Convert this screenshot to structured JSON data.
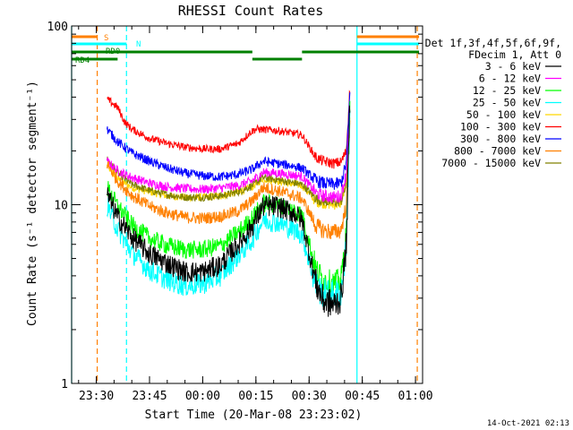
{
  "chart_data": {
    "type": "line",
    "title": "RHESSI Count Rates",
    "xlabel": "Start Time (20-Mar-08 23:23:02)",
    "ylabel": "Count Rate (s⁻¹ detector segment⁻¹)",
    "y_scale": "log",
    "ylim": [
      1,
      100
    ],
    "x_time_range": [
      "23:23:02",
      "01:02:00"
    ],
    "x_ticks": [
      "23:30",
      "23:45",
      "00:00",
      "00:15",
      "00:30",
      "00:45",
      "01:00"
    ],
    "y_ticks": [
      "1",
      "10",
      "100"
    ],
    "legend_header": [
      "Det 1f,3f,4f,5f,6f,9f,",
      "FDecim 1, Att 0"
    ],
    "legend_placement": "right",
    "grid": false,
    "timestamp": "14-Oct-2021 02:13",
    "flag_labels": {
      "s": "S",
      "n": "N",
      "rd0": "RD0",
      "rd4": "RD4"
    },
    "flag_bars": [
      {
        "label": "S",
        "color": "#ff8000",
        "from": "23:23:02",
        "to": "23:30:15",
        "level": "top"
      },
      {
        "label": "S",
        "color": "#ff8000",
        "from": "00:43:30",
        "to": "01:01:00",
        "level": "top"
      },
      {
        "label": "N",
        "color": "#00ffff",
        "from": "23:23:02",
        "to": "23:38:30",
        "level": "middle"
      },
      {
        "label": "N",
        "color": "#00ffff",
        "from": "00:43:30",
        "to": "01:01:00",
        "level": "middle"
      },
      {
        "label": "RD0",
        "color": "#008000",
        "from": "23:23:02",
        "to": "00:14:00",
        "level": "upper"
      },
      {
        "label": "RD0",
        "color": "#008000",
        "from": "00:28:00",
        "to": "01:01:00",
        "level": "upper"
      },
      {
        "label": "RD4",
        "color": "#008000",
        "from": "23:23:02",
        "to": "23:36:00",
        "level": "lower"
      },
      {
        "label": "RD4",
        "color": "#008000",
        "from": "00:14:00",
        "to": "00:28:00",
        "level": "lower"
      }
    ],
    "vlines": [
      {
        "time": "23:23:02",
        "color": "#00ffff",
        "style": "solid"
      },
      {
        "time": "23:30:15",
        "color": "#ff8000",
        "style": "dashed"
      },
      {
        "time": "23:38:30",
        "color": "#00ffff",
        "style": "dashed"
      },
      {
        "time": "00:43:30",
        "color": "#00ffff",
        "style": "solid"
      },
      {
        "time": "01:00:30",
        "color": "#ff8000",
        "style": "dashed"
      }
    ],
    "data_window": [
      "23:33:00",
      "00:41:30"
    ],
    "series": [
      {
        "name": "3 - 6 keV",
        "color": "#000000",
        "times": [
          "23:33:00",
          "23:36:00",
          "23:40:00",
          "23:45:00",
          "23:50:00",
          "23:55:00",
          "00:00:00",
          "00:05:00",
          "00:10:00",
          "00:14:00",
          "00:17:00",
          "00:21:00",
          "00:26:00",
          "00:28:00",
          "00:32:00",
          "00:34:00",
          "00:37:00",
          "00:39:00",
          "00:40:30",
          "00:41:30"
        ],
        "values": [
          11.5,
          8.5,
          6.6,
          5.3,
          4.7,
          4.2,
          4.2,
          4.6,
          6.0,
          7.6,
          9.8,
          9.8,
          8.9,
          8.2,
          3.6,
          2.9,
          2.75,
          3.0,
          6.0,
          38
        ]
      },
      {
        "name": "6 - 12 keV",
        "color": "#ff00ff",
        "times": [
          "23:33:00",
          "23:36:00",
          "23:40:00",
          "23:45:00",
          "23:50:00",
          "23:55:00",
          "00:00:00",
          "00:05:00",
          "00:10:00",
          "00:14:00",
          "00:17:00",
          "00:21:00",
          "00:26:00",
          "00:28:00",
          "00:32:00",
          "00:34:00",
          "00:37:00",
          "00:39:00",
          "00:40:30",
          "00:41:30"
        ],
        "values": [
          17.5,
          15.5,
          14.2,
          13.2,
          12.6,
          12.3,
          12.2,
          12.4,
          12.8,
          13.6,
          15.2,
          15.0,
          14.6,
          14.4,
          11.6,
          11.2,
          11.0,
          11.2,
          15,
          34
        ]
      },
      {
        "name": "12 - 25 keV",
        "color": "#00ff00",
        "times": [
          "23:33:00",
          "23:36:00",
          "23:40:00",
          "23:45:00",
          "23:50:00",
          "23:55:00",
          "00:00:00",
          "00:05:00",
          "00:10:00",
          "00:14:00",
          "00:17:00",
          "00:21:00",
          "00:26:00",
          "00:28:00",
          "00:32:00",
          "00:34:00",
          "00:37:00",
          "00:39:00",
          "00:40:30",
          "00:41:30"
        ],
        "values": [
          12.5,
          9.8,
          7.7,
          6.5,
          5.9,
          5.6,
          5.6,
          5.9,
          7.0,
          8.4,
          10.2,
          10.0,
          9.2,
          8.8,
          4.3,
          3.8,
          3.6,
          3.8,
          7.0,
          33
        ]
      },
      {
        "name": "25 - 50 keV",
        "color": "#00ffff",
        "times": [
          "23:33:00",
          "23:36:00",
          "23:40:00",
          "23:45:00",
          "23:50:00",
          "23:55:00",
          "00:00:00",
          "00:05:00",
          "00:10:00",
          "00:14:00",
          "00:17:00",
          "00:21:00",
          "00:26:00",
          "00:28:00",
          "00:32:00",
          "00:34:00",
          "00:37:00",
          "00:39:00",
          "00:40:30",
          "00:41:30"
        ],
        "values": [
          10.0,
          7.3,
          5.4,
          4.3,
          3.8,
          3.5,
          3.6,
          4.0,
          5.2,
          6.4,
          8.2,
          8.0,
          7.2,
          6.8,
          3.5,
          3.2,
          3.15,
          3.2,
          6.0,
          35
        ]
      },
      {
        "name": "50 - 100 keV",
        "color": "#ffd700",
        "times": [
          "23:33:00",
          "23:36:00",
          "23:40:00",
          "23:45:00",
          "23:50:00",
          "23:55:00",
          "00:00:00",
          "00:05:00",
          "00:10:00",
          "00:14:00",
          "00:17:00",
          "00:21:00",
          "00:26:00",
          "00:28:00",
          "00:32:00",
          "00:34:00",
          "00:37:00",
          "00:39:00",
          "00:40:30",
          "00:41:30"
        ],
        "values": [
          16.5,
          14.0,
          12.5,
          11.8,
          11.2,
          11.0,
          11.0,
          11.2,
          11.8,
          12.6,
          14.0,
          13.6,
          13.0,
          12.8,
          10.4,
          10.2,
          10.0,
          10.2,
          13,
          32
        ]
      },
      {
        "name": "100 - 300 keV",
        "color": "#ff0000",
        "times": [
          "23:33:00",
          "23:36:00",
          "23:38:00",
          "23:40:00",
          "23:45:00",
          "23:50:00",
          "23:55:00",
          "00:00:00",
          "00:05:00",
          "00:10:00",
          "00:13:30",
          "00:15:00",
          "00:21:00",
          "00:26:00",
          "00:28:00",
          "00:32:00",
          "00:34:00",
          "00:37:00",
          "00:39:00",
          "00:40:30",
          "00:41:30"
        ],
        "values": [
          39,
          35,
          29,
          26.5,
          23.5,
          22.0,
          21.0,
          20.5,
          20.5,
          22.0,
          25.5,
          26.5,
          26.0,
          25.0,
          24.5,
          18.3,
          17.5,
          17.0,
          17.3,
          20,
          45
        ]
      },
      {
        "name": "300 - 800 keV",
        "color": "#0000ff",
        "times": [
          "23:33:00",
          "23:36:00",
          "23:40:00",
          "23:45:00",
          "23:50:00",
          "23:55:00",
          "00:00:00",
          "00:05:00",
          "00:10:00",
          "00:14:00",
          "00:17:00",
          "00:21:00",
          "00:26:00",
          "00:28:00",
          "00:32:00",
          "00:34:00",
          "00:37:00",
          "00:39:00",
          "00:40:30",
          "00:41:30"
        ],
        "values": [
          26.5,
          22.5,
          19.5,
          17.5,
          16.0,
          15.0,
          14.5,
          14.3,
          14.8,
          15.8,
          17.5,
          17.0,
          16.4,
          16.0,
          13.6,
          13.2,
          13.0,
          13.2,
          17,
          42
        ]
      },
      {
        "name": "800 - 7000 keV",
        "color": "#ff8000",
        "times": [
          "23:33:00",
          "23:36:00",
          "23:40:00",
          "23:45:00",
          "23:50:00",
          "23:55:00",
          "00:00:00",
          "00:05:00",
          "00:10:00",
          "00:14:00",
          "00:17:00",
          "00:21:00",
          "00:26:00",
          "00:28:00",
          "00:32:00",
          "00:34:00",
          "00:37:00",
          "00:39:00",
          "00:40:30",
          "00:41:30"
        ],
        "values": [
          17.0,
          13.6,
          11.3,
          9.8,
          9.0,
          8.5,
          8.4,
          8.6,
          9.2,
          10.5,
          12.5,
          12.0,
          11.2,
          10.8,
          7.6,
          7.2,
          7.0,
          7.2,
          10,
          30
        ]
      },
      {
        "name": "7000 - 15000 keV",
        "color": "#808000",
        "times": [
          "23:33:00",
          "23:36:00",
          "23:40:00",
          "23:45:00",
          "23:50:00",
          "23:55:00",
          "00:00:00",
          "00:05:00",
          "00:10:00",
          "00:14:00",
          "00:17:00",
          "00:21:00",
          "00:26:00",
          "00:28:00",
          "00:32:00",
          "00:34:00",
          "00:37:00",
          "00:39:00",
          "00:40:30",
          "00:41:30"
        ],
        "values": [
          18.0,
          15.0,
          13.0,
          12.0,
          11.4,
          11.0,
          11.0,
          11.2,
          11.8,
          12.8,
          14.2,
          13.8,
          13.2,
          13.0,
          10.8,
          10.5,
          10.3,
          10.5,
          13,
          30
        ]
      }
    ]
  }
}
